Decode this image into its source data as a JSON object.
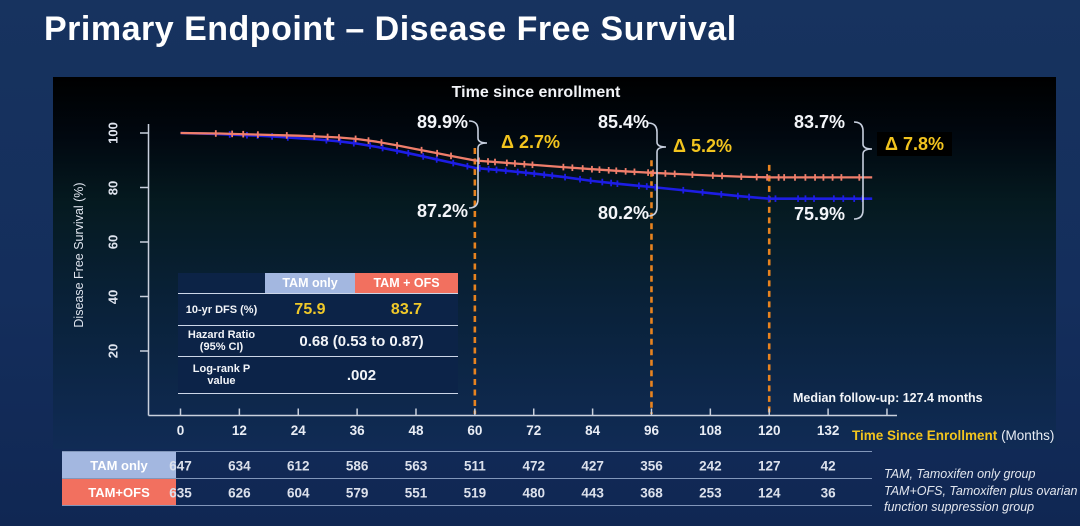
{
  "slide": {
    "title": "Primary Endpoint – Disease Free Survival"
  },
  "chart_data": {
    "type": "line",
    "title": "Time since enrollment",
    "ylabel": "Disease Free Survival (%)",
    "xlabel": "Time Since Enrollment",
    "xlabel_unit": "(Months)",
    "xlim": [
      0,
      144
    ],
    "ylim": [
      0,
      100
    ],
    "x_ticks": [
      0,
      12,
      24,
      36,
      48,
      60,
      72,
      84,
      96,
      108,
      120,
      132
    ],
    "y_ticks": [
      20,
      40,
      60,
      80,
      100
    ],
    "grid": false,
    "axis_color": "#c9d0dd",
    "series": [
      {
        "name": "TAM only",
        "color": "#1d1de4",
        "points": [
          [
            0,
            100
          ],
          [
            4,
            99.8
          ],
          [
            8,
            99.6
          ],
          [
            12,
            99.3
          ],
          [
            16,
            99.0
          ],
          [
            20,
            98.6
          ],
          [
            24,
            98.1
          ],
          [
            28,
            97.6
          ],
          [
            32,
            97.0
          ],
          [
            36,
            96.1
          ],
          [
            40,
            94.9
          ],
          [
            44,
            93.5
          ],
          [
            48,
            92.0
          ],
          [
            52,
            90.4
          ],
          [
            56,
            88.8
          ],
          [
            60,
            87.2
          ],
          [
            66,
            86.2
          ],
          [
            72,
            85.1
          ],
          [
            78,
            83.9
          ],
          [
            84,
            82.4
          ],
          [
            90,
            81.2
          ],
          [
            96,
            80.2
          ],
          [
            102,
            79.1
          ],
          [
            108,
            77.9
          ],
          [
            114,
            76.8
          ],
          [
            120,
            75.9
          ],
          [
            126,
            75.9
          ],
          [
            132,
            75.9
          ],
          [
            141,
            75.9
          ]
        ]
      },
      {
        "name": "TAM+OFS",
        "color": "#ef7e6b",
        "points": [
          [
            0,
            100
          ],
          [
            4,
            99.9
          ],
          [
            8,
            99.8
          ],
          [
            12,
            99.6
          ],
          [
            16,
            99.4
          ],
          [
            20,
            99.2
          ],
          [
            24,
            99.0
          ],
          [
            28,
            98.7
          ],
          [
            32,
            98.4
          ],
          [
            36,
            97.8
          ],
          [
            40,
            96.8
          ],
          [
            44,
            95.5
          ],
          [
            48,
            94.1
          ],
          [
            52,
            92.7
          ],
          [
            56,
            91.3
          ],
          [
            60,
            89.9
          ],
          [
            66,
            89.1
          ],
          [
            72,
            88.3
          ],
          [
            78,
            87.5
          ],
          [
            84,
            86.7
          ],
          [
            90,
            86.0
          ],
          [
            96,
            85.4
          ],
          [
            102,
            84.9
          ],
          [
            108,
            84.4
          ],
          [
            114,
            84.0
          ],
          [
            120,
            83.7
          ],
          [
            126,
            83.7
          ],
          [
            132,
            83.7
          ],
          [
            141,
            83.7
          ]
        ]
      }
    ],
    "milestones": [
      {
        "month": 60,
        "upper": "89.9%",
        "lower": "87.2%",
        "delta": "Δ 2.7%",
        "highlighted": false
      },
      {
        "month": 96,
        "upper": "85.4%",
        "lower": "80.2%",
        "delta": "Δ 5.2%",
        "highlighted": false
      },
      {
        "month": 120,
        "upper": "83.7%",
        "lower": "75.9%",
        "delta": "Δ 7.8%",
        "highlighted": true
      }
    ],
    "marker_line_color": "#e8831f",
    "delta_color": "#f2c41e",
    "median_followup": "Median follow-up: 127.4 months",
    "risk_table": {
      "rows": [
        {
          "label": "TAM only",
          "color": "#a3b7e0",
          "values": [
            647,
            634,
            612,
            586,
            563,
            511,
            472,
            427,
            356,
            242,
            127,
            42
          ]
        },
        {
          "label": "TAM+OFS",
          "color": "#f2705f",
          "values": [
            635,
            626,
            604,
            579,
            551,
            519,
            480,
            443,
            368,
            253,
            124,
            36
          ]
        }
      ]
    }
  },
  "stats_table": {
    "col_headers": [
      "TAM only",
      "TAM + OFS"
    ],
    "header_colors": [
      "#a3b7e0",
      "#f2705f"
    ],
    "rows": [
      {
        "label": "10-yr DFS (%)",
        "values": [
          "75.9",
          "83.7"
        ]
      },
      {
        "label": "Hazard Ratio (95% CI)",
        "value": "0.68 (0.53 to 0.87)"
      },
      {
        "label": "Log-rank P value",
        "value": ".002"
      }
    ]
  },
  "footnotes": [
    "TAM, Tamoxifen only group",
    "TAM+OFS, Tamoxifen plus ovarian function suppression group"
  ]
}
